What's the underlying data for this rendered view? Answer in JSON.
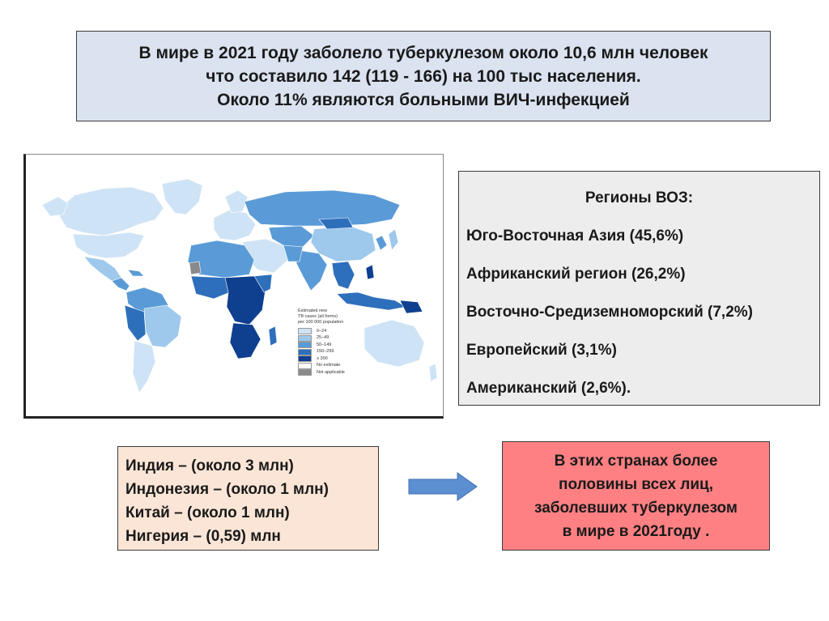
{
  "title": {
    "line1": "В мире в 2021 году заболело туберкулезом около 10,6 млн человек",
    "line2": "что составило 142 (119 - 166) на 100 тыс населения.",
    "line3": "Около 11% являются больными ВИЧ-инфекцией"
  },
  "map": {
    "legend": {
      "title_line1": "Estimated new",
      "title_line2": "TB cases (all forms)",
      "title_line3": "per 100 000 population",
      "items": [
        {
          "label": "0–24",
          "color": "#cfe3f6"
        },
        {
          "label": "25–49",
          "color": "#9ec8ec"
        },
        {
          "label": "50–149",
          "color": "#5a9bd7"
        },
        {
          "label": "150–299",
          "color": "#2e6fbb"
        },
        {
          "label": "≥ 300",
          "color": "#0f3f8f"
        },
        {
          "label": "No estimate",
          "color": "#ffffff"
        },
        {
          "label": "Not applicable",
          "color": "#8a8a8a"
        }
      ]
    }
  },
  "regions": {
    "title": "Регионы ВОЗ:",
    "items": [
      "Юго-Восточная Азия (45,6%)",
      "Африканский регион (26,2%)",
      "Восточно-Средиземноморский (7,2%)",
      "Европейский (3,1%)",
      "Американский (2,6%)."
    ]
  },
  "countries": {
    "items": [
      "Индия – (около 3 млн)",
      "Индонезия – (около 1 млн)",
      "Китай – (около 1 млн)",
      "Нигерия – (0,59) млн"
    ]
  },
  "conclusion": {
    "line1": "В этих странах более",
    "line2": "половины всех лиц,",
    "line3": "заболевших туберкулезом",
    "line4": "в мире в 2021году ."
  },
  "colors": {
    "title_bg": "#dbe3f1",
    "regions_bg": "#ededed",
    "countries_bg": "#fbe5d6",
    "conclusion_bg": "#ff8083",
    "arrow": "#5b8fd1"
  }
}
